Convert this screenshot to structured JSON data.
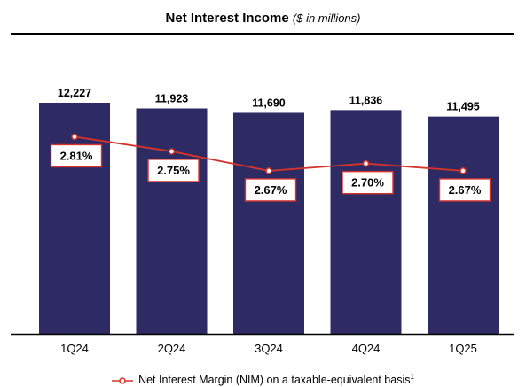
{
  "chart_data": {
    "type": "bar",
    "title": "Net Interest Income",
    "subtitle": "($ in millions)",
    "categories": [
      "1Q24",
      "2Q24",
      "3Q24",
      "4Q24",
      "1Q25"
    ],
    "series": [
      {
        "values": [
          12227,
          11923,
          11690,
          11836,
          11495
        ],
        "data_labels": [
          "12,227",
          "11,923",
          "11,690",
          "11,836",
          "11,495"
        ],
        "color": "#2e2a63"
      },
      {
        "name": "Net Interest Margin (NIM) on a taxable-equivalent basis",
        "type": "line",
        "values": [
          2.81,
          2.75,
          2.67,
          2.7,
          2.67
        ],
        "data_labels": [
          "2.81%",
          "2.75%",
          "2.67%",
          "2.70%",
          "2.67%"
        ],
        "color": "#d6342b"
      }
    ],
    "ylim": [
      0,
      12227
    ],
    "nim_ylim": [
      2.0,
      2.95
    ],
    "legend_footnote": "1",
    "legend_position": "bottom",
    "grid": false
  }
}
